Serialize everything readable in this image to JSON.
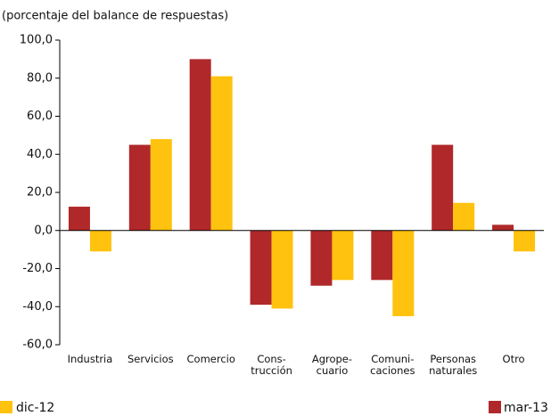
{
  "chart_data": {
    "type": "bar",
    "subtitle": "(porcentaje del balance de respuestas)",
    "categories": [
      "Industria",
      "Servicios",
      "Comercio",
      "Cons-\ntrucción",
      "Agrope-\ncuario",
      "Comuni-\ncaciones",
      "Personas\nnaturales",
      "Otro"
    ],
    "series": [
      {
        "name": "mar-13",
        "color": "#b0282a",
        "values": [
          12.5,
          45,
          90,
          -39,
          -29,
          -26,
          45,
          3
        ]
      },
      {
        "name": "dic-12",
        "color": "#ffc20e",
        "values": [
          -11,
          48,
          81,
          -41,
          -26,
          -45,
          14.5,
          -11
        ]
      }
    ],
    "ylim": [
      -60,
      100
    ],
    "yticks": [
      {
        "value": 100,
        "label": "100,0"
      },
      {
        "value": 80,
        "label": "80,0"
      },
      {
        "value": 60,
        "label": "60,0"
      },
      {
        "value": 40,
        "label": "40,0"
      },
      {
        "value": 20,
        "label": "20,0"
      },
      {
        "value": 0,
        "label": "0,0"
      },
      {
        "value": -20,
        "label": "-20,0"
      },
      {
        "value": -40,
        "label": "-40,0"
      },
      {
        "value": -60,
        "label": "-60,0"
      }
    ],
    "legend": "bottom"
  }
}
